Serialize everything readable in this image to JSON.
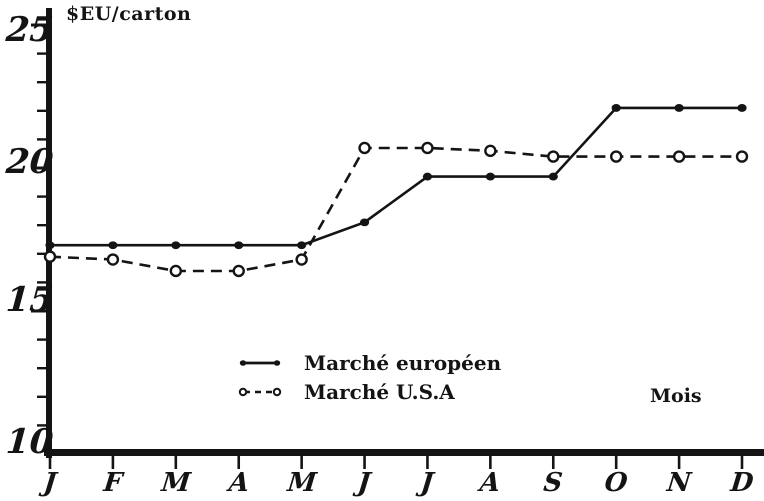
{
  "page": {
    "background": "#ffffff",
    "ink": "#141414"
  },
  "title": "$EU/carton",
  "y_axis": {
    "labels": [
      "25",
      "20",
      "15",
      "10"
    ]
  },
  "x_axis": {
    "label": "Mois"
  },
  "legend": {
    "items": [
      {
        "label": "Marché européen",
        "style": "solid",
        "marker": "filled-dot"
      },
      {
        "label": "Marché U.S.A",
        "style": "dashed",
        "marker": "open-circle"
      }
    ]
  },
  "chart_data": {
    "type": "line",
    "title": "$EU/carton",
    "ylabel": "$EU/carton",
    "xlabel": "Mois",
    "categories": [
      "J",
      "F",
      "M",
      "A",
      "M",
      "J",
      "J",
      "A",
      "S",
      "O",
      "N",
      "D"
    ],
    "series": [
      {
        "name": "Marché européen",
        "line_style": "solid",
        "marker": "filled-dot",
        "values": [
          17.3,
          17.3,
          17.3,
          17.3,
          17.3,
          18.1,
          19.7,
          19.7,
          19.7,
          22.1,
          22.1,
          22.1
        ]
      },
      {
        "name": "Marché U.S.A",
        "line_style": "dashed",
        "marker": "open-circle",
        "values": [
          16.9,
          16.8,
          16.4,
          16.4,
          16.8,
          20.7,
          20.7,
          20.6,
          20.4,
          20.4,
          20.4,
          20.4
        ]
      }
    ],
    "ylim": [
      10,
      25.6
    ],
    "y_major_ticks": [
      10,
      15,
      20,
      25
    ],
    "y_minor_tick_step": 1,
    "grid": false,
    "legend_position": "inside-bottom-center"
  }
}
